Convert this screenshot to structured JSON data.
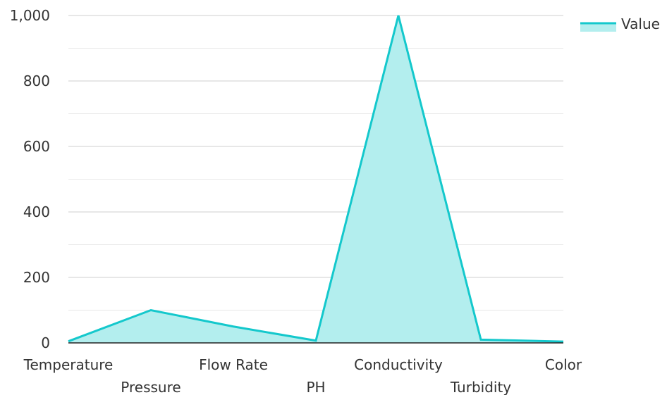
{
  "chart_data": {
    "type": "area",
    "categories": [
      "Temperature",
      "Pressure",
      "Flow Rate",
      "PH",
      "Conductivity",
      "Turbidity",
      "Color"
    ],
    "series": [
      {
        "name": "Value",
        "values": [
          5,
          100,
          50,
          7,
          1000,
          10,
          4
        ]
      }
    ],
    "title": "",
    "xlabel": "",
    "ylabel": "",
    "ylim": [
      0,
      1000
    ],
    "yticks": [
      0,
      200,
      400,
      600,
      800,
      1000
    ],
    "ytick_labels": [
      "0",
      "200",
      "400",
      "600",
      "800",
      "1,000"
    ],
    "grid": true,
    "legend": "top-right"
  },
  "colors": {
    "line": "#14c8cc",
    "fill": "#b3eeee",
    "grid_major": "#cfcfcf",
    "grid_minor": "#e8e8e8",
    "axis": "#222222"
  }
}
